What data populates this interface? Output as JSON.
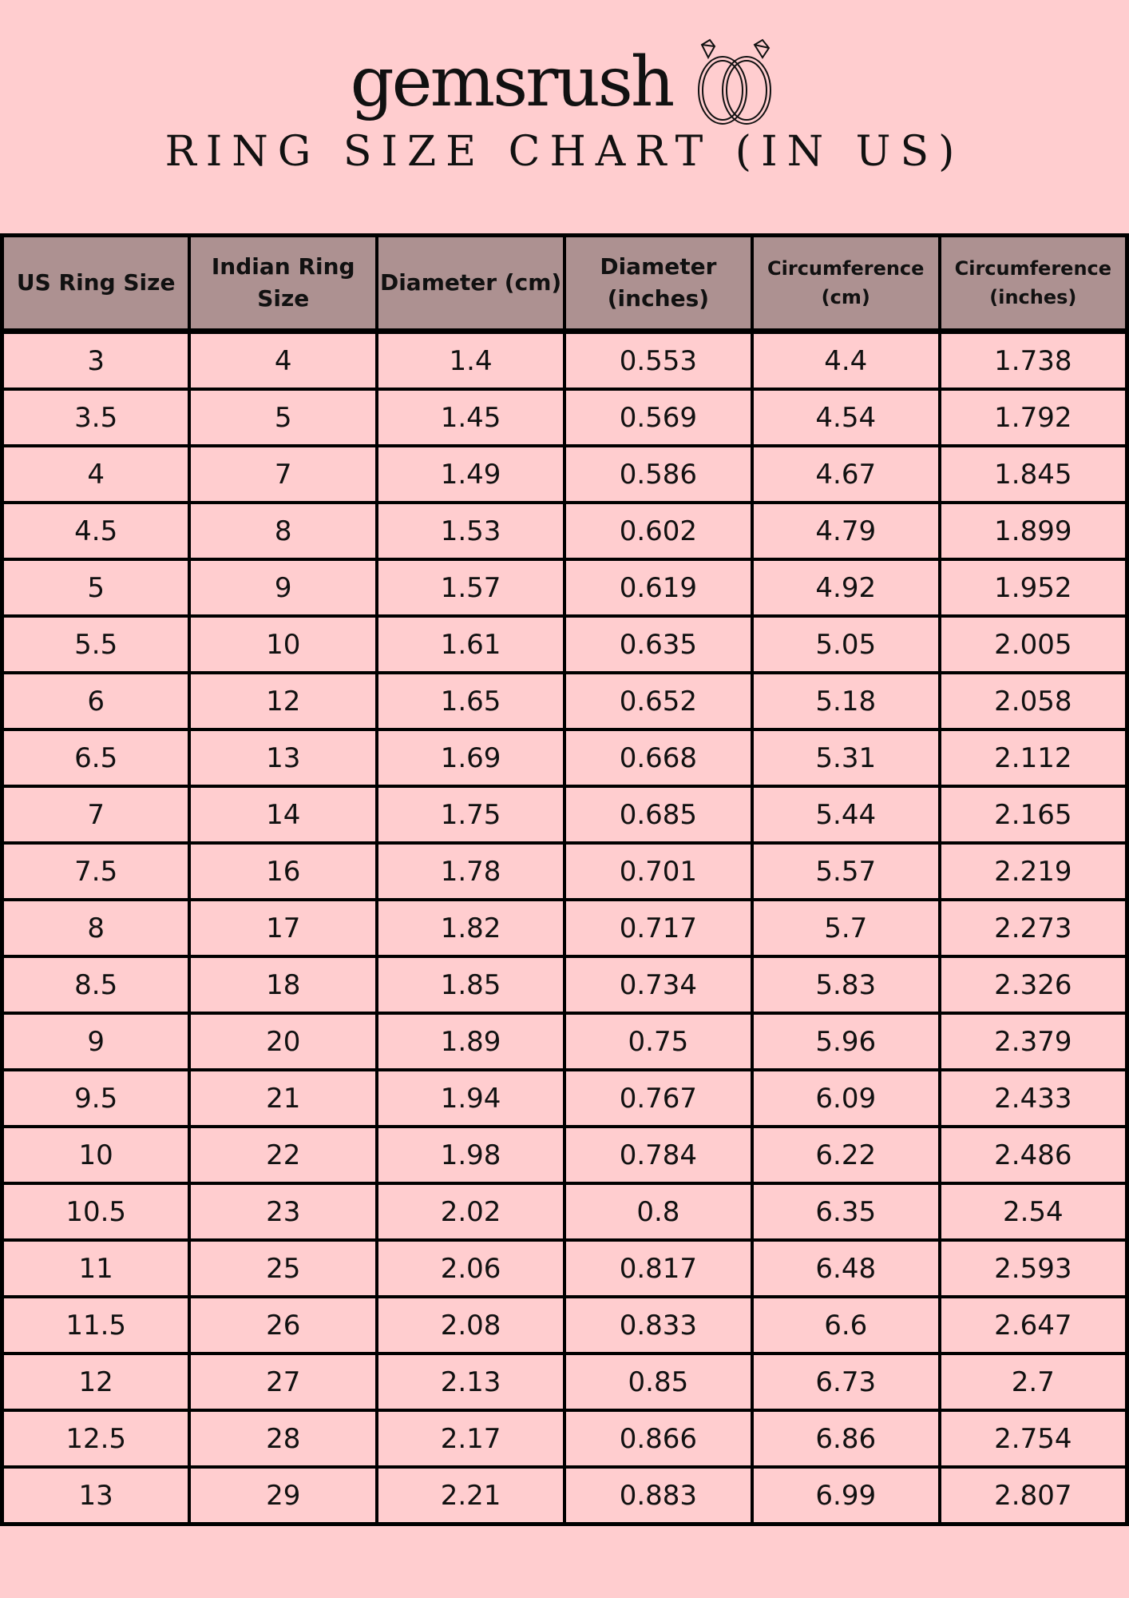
{
  "brand": {
    "logo_text": "gemsrush"
  },
  "title": "RING SIZE CHART (IN US)",
  "colors": {
    "background": "#ffcdcf",
    "header": "#ad9191",
    "border": "#000000"
  },
  "table": {
    "headers": [
      "US Ring Size",
      "Indian Ring Size",
      "Diameter (cm)",
      "Diameter (inches)",
      "Circumference (cm)",
      "Circumference (inches)"
    ],
    "rows": [
      [
        "3",
        "4",
        "1.4",
        "0.553",
        "4.4",
        "1.738"
      ],
      [
        "3.5",
        "5",
        "1.45",
        "0.569",
        "4.54",
        "1.792"
      ],
      [
        "4",
        "7",
        "1.49",
        "0.586",
        "4.67",
        "1.845"
      ],
      [
        "4.5",
        "8",
        "1.53",
        "0.602",
        "4.79",
        "1.899"
      ],
      [
        "5",
        "9",
        "1.57",
        "0.619",
        "4.92",
        "1.952"
      ],
      [
        "5.5",
        "10",
        "1.61",
        "0.635",
        "5.05",
        "2.005"
      ],
      [
        "6",
        "12",
        "1.65",
        "0.652",
        "5.18",
        "2.058"
      ],
      [
        "6.5",
        "13",
        "1.69",
        "0.668",
        "5.31",
        "2.112"
      ],
      [
        "7",
        "14",
        "1.75",
        "0.685",
        "5.44",
        "2.165"
      ],
      [
        "7.5",
        "16",
        "1.78",
        "0.701",
        "5.57",
        "2.219"
      ],
      [
        "8",
        "17",
        "1.82",
        "0.717",
        "5.7",
        "2.273"
      ],
      [
        "8.5",
        "18",
        "1.85",
        "0.734",
        "5.83",
        "2.326"
      ],
      [
        "9",
        "20",
        "1.89",
        "0.75",
        "5.96",
        "2.379"
      ],
      [
        "9.5",
        "21",
        "1.94",
        "0.767",
        "6.09",
        "2.433"
      ],
      [
        "10",
        "22",
        "1.98",
        "0.784",
        "6.22",
        "2.486"
      ],
      [
        "10.5",
        "23",
        "2.02",
        "0.8",
        "6.35",
        "2.54"
      ],
      [
        "11",
        "25",
        "2.06",
        "0.817",
        "6.48",
        "2.593"
      ],
      [
        "11.5",
        "26",
        "2.08",
        "0.833",
        "6.6",
        "2.647"
      ],
      [
        "12",
        "27",
        "2.13",
        "0.85",
        "6.73",
        "2.7"
      ],
      [
        "12.5",
        "28",
        "2.17",
        "0.866",
        "6.86",
        "2.754"
      ],
      [
        "13",
        "29",
        "2.21",
        "0.883",
        "6.99",
        "2.807"
      ]
    ]
  }
}
